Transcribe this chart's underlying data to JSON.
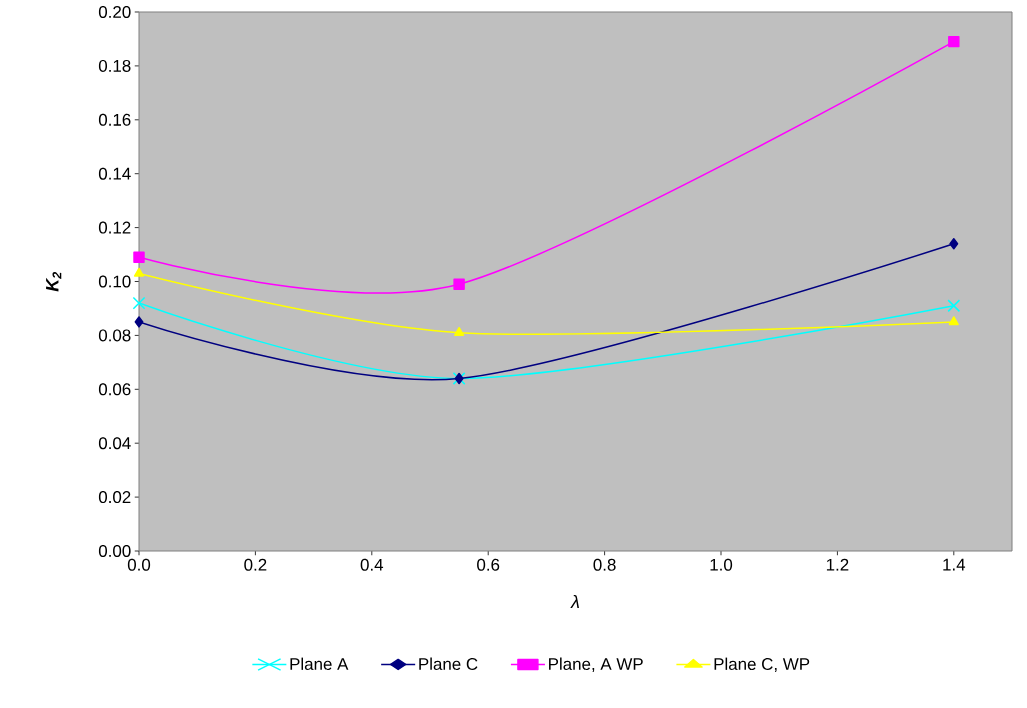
{
  "chart_data": {
    "type": "line",
    "xlabel": "λ",
    "ylabel": "K$_{2}$",
    "x": [
      0,
      0.55,
      1.4
    ],
    "series": [
      {
        "name": "Plane A",
        "color": "#00ffff",
        "marker": "cross",
        "values": [
          0.092,
          0.064,
          0.091
        ]
      },
      {
        "name": "Plane C",
        "color": "#000080",
        "marker": "diamond",
        "values": [
          0.085,
          0.064,
          0.114
        ]
      },
      {
        "name": "Plane, A WP",
        "color": "#ff00ff",
        "marker": "square",
        "values": [
          0.109,
          0.099,
          0.189
        ]
      },
      {
        "name": "Plane C, WP",
        "color": "#ffff00",
        "marker": "triangle",
        "values": [
          0.103,
          0.081,
          0.085
        ]
      }
    ],
    "xlim": [
      0,
      1.5
    ],
    "ylim": [
      0,
      0.2
    ],
    "xticks": [
      {
        "value": 0,
        "label": "0.0"
      },
      0.2,
      0.4,
      0.6,
      0.8,
      {
        "value": 1,
        "label": "1.0"
      },
      1.2,
      1.4
    ],
    "yticks": [
      {
        "value": 0,
        "label": "0.00"
      },
      {
        "value": 0.02,
        "label": "0.02"
      },
      {
        "value": 0.04,
        "label": "0.04"
      },
      {
        "value": 0.06,
        "label": "0.06"
      },
      {
        "value": 0.08,
        "label": "0.08"
      },
      {
        "value": 0.1,
        "label": "0.10"
      },
      {
        "value": 0.12,
        "label": "0.12"
      },
      {
        "value": 0.14,
        "label": "0.14"
      },
      {
        "value": 0.16,
        "label": "0.16"
      },
      {
        "value": 0.18,
        "label": "0.18"
      },
      {
        "value": 0.2,
        "label": "0.20"
      }
    ],
    "grid": false,
    "legend": "bottom",
    "line_style": "solid"
  }
}
